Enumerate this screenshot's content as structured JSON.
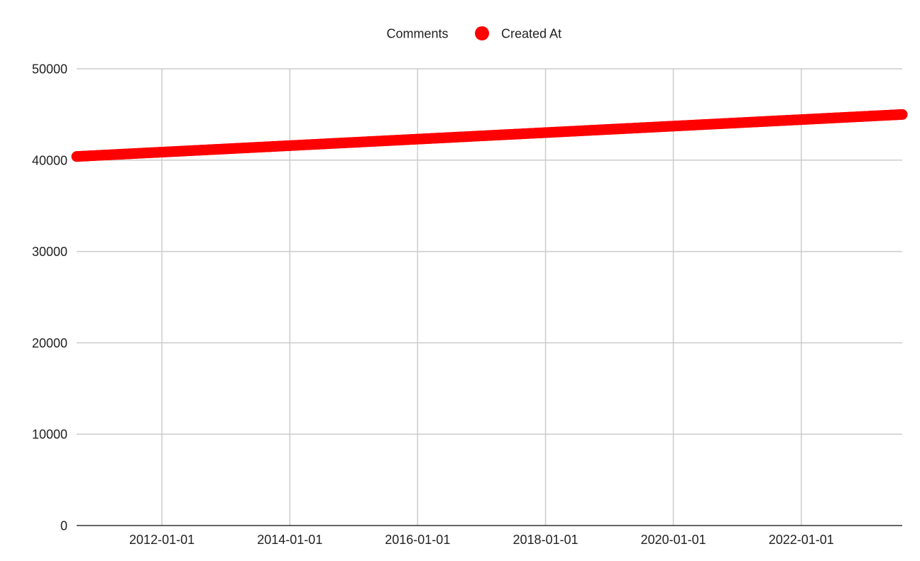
{
  "chart_data": {
    "type": "scatter",
    "title": "",
    "xlabel": "",
    "ylabel": "",
    "legend": {
      "position": "top",
      "label": "Comments",
      "entries": [
        "Created At"
      ]
    },
    "x_axis": {
      "type": "date",
      "range": [
        "2010-09-01",
        "2023-08-01"
      ],
      "ticks": [
        "2012-01-01",
        "2014-01-01",
        "2016-01-01",
        "2018-01-01",
        "2020-01-01",
        "2022-01-01"
      ]
    },
    "y_axis": {
      "range": [
        0,
        50000
      ],
      "ticks": [
        0,
        10000,
        20000,
        30000,
        40000,
        50000
      ]
    },
    "grid": true,
    "series": [
      {
        "name": "Created At",
        "color": "#ff0000",
        "marker": "circle",
        "x_range": [
          "2010-09-01",
          "2023-08-01"
        ],
        "y_range": [
          40400,
          45000
        ],
        "interpretation": "dense continuous daily points; y increases linearly with date"
      }
    ]
  }
}
